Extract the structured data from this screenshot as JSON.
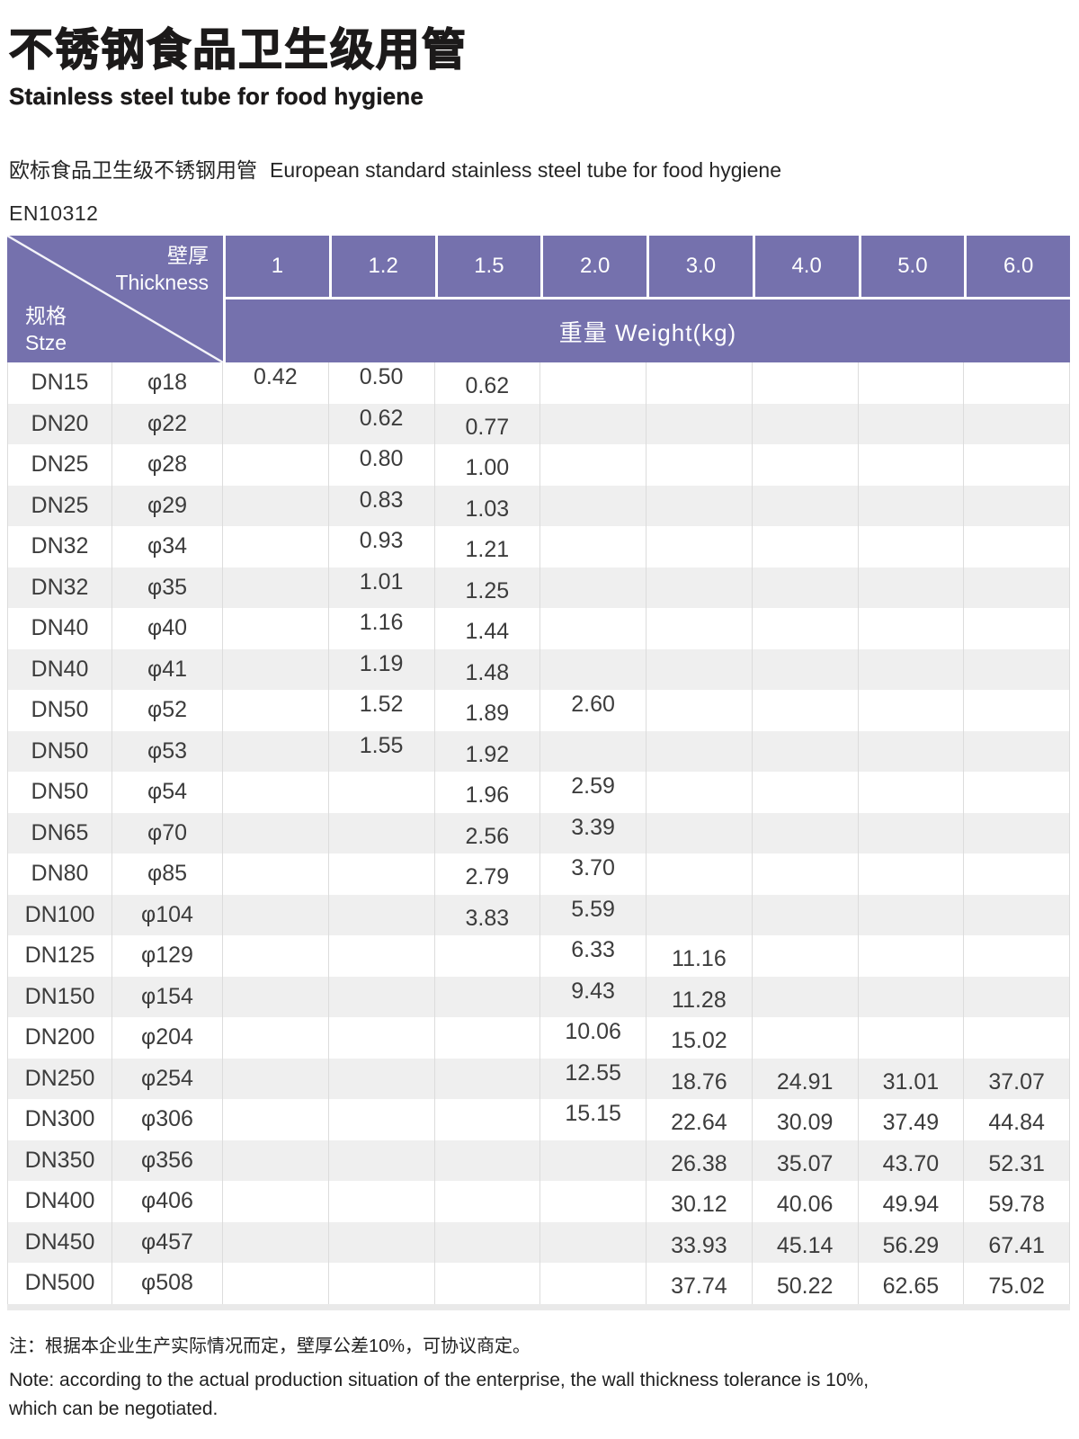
{
  "page": {
    "title_zh": "不锈钢食品卫生级用管",
    "title_en": "Stainless steel tube for food hygiene",
    "subtitle_zh": "欧标食品卫生级不锈钢用管",
    "subtitle_en": "European standard stainless steel tube for food hygiene",
    "standard": "EN10312"
  },
  "colors": {
    "header_purple": "#7571ad",
    "stripe_gray": "#efefef",
    "divider_gray": "#dcdcdc"
  },
  "table": {
    "corner": {
      "top_zh": "壁厚",
      "top_en": "Thickness",
      "bottom_zh": "规格",
      "bottom_en": "Stze"
    },
    "thickness_columns": [
      "1",
      "1.2",
      "1.5",
      "2.0",
      "3.0",
      "4.0",
      "5.0",
      "6.0"
    ],
    "weight_header": "重量 Weight(kg)",
    "column_offset_styles": [
      "up",
      "up",
      "down",
      "up",
      "down",
      "down",
      "down",
      "down"
    ],
    "rows": [
      {
        "dn": "DN15",
        "dia": "φ18",
        "weights": [
          "0.42",
          "0.50",
          "0.62",
          "",
          "",
          "",
          "",
          ""
        ]
      },
      {
        "dn": "DN20",
        "dia": "φ22",
        "weights": [
          "",
          "0.62",
          "0.77",
          "",
          "",
          "",
          "",
          ""
        ]
      },
      {
        "dn": "DN25",
        "dia": "φ28",
        "weights": [
          "",
          "0.80",
          "1.00",
          "",
          "",
          "",
          "",
          ""
        ]
      },
      {
        "dn": "DN25",
        "dia": "φ29",
        "weights": [
          "",
          "0.83",
          "1.03",
          "",
          "",
          "",
          "",
          ""
        ]
      },
      {
        "dn": "DN32",
        "dia": "φ34",
        "weights": [
          "",
          "0.93",
          "1.21",
          "",
          "",
          "",
          "",
          ""
        ]
      },
      {
        "dn": "DN32",
        "dia": "φ35",
        "weights": [
          "",
          "1.01",
          "1.25",
          "",
          "",
          "",
          "",
          ""
        ]
      },
      {
        "dn": "DN40",
        "dia": "φ40",
        "weights": [
          "",
          "1.16",
          "1.44",
          "",
          "",
          "",
          "",
          ""
        ]
      },
      {
        "dn": "DN40",
        "dia": "φ41",
        "weights": [
          "",
          "1.19",
          "1.48",
          "",
          "",
          "",
          "",
          ""
        ]
      },
      {
        "dn": "DN50",
        "dia": "φ52",
        "weights": [
          "",
          "1.52",
          "1.89",
          "2.60",
          "",
          "",
          "",
          ""
        ]
      },
      {
        "dn": "DN50",
        "dia": "φ53",
        "weights": [
          "",
          "1.55",
          "1.92",
          "",
          "",
          "",
          "",
          ""
        ]
      },
      {
        "dn": "DN50",
        "dia": "φ54",
        "weights": [
          "",
          "",
          "1.96",
          "2.59",
          "",
          "",
          "",
          ""
        ]
      },
      {
        "dn": "DN65",
        "dia": "φ70",
        "weights": [
          "",
          "",
          "2.56",
          "3.39",
          "",
          "",
          "",
          ""
        ]
      },
      {
        "dn": "DN80",
        "dia": "φ85",
        "weights": [
          "",
          "",
          "2.79",
          "3.70",
          "",
          "",
          "",
          ""
        ]
      },
      {
        "dn": "DN100",
        "dia": "φ104",
        "weights": [
          "",
          "",
          "3.83",
          "5.59",
          "",
          "",
          "",
          ""
        ]
      },
      {
        "dn": "DN125",
        "dia": "φ129",
        "weights": [
          "",
          "",
          "",
          "6.33",
          "11.16",
          "",
          "",
          ""
        ]
      },
      {
        "dn": "DN150",
        "dia": "φ154",
        "weights": [
          "",
          "",
          "",
          "9.43",
          "11.28",
          "",
          "",
          ""
        ]
      },
      {
        "dn": "DN200",
        "dia": "φ204",
        "weights": [
          "",
          "",
          "",
          "10.06",
          "15.02",
          "",
          "",
          ""
        ]
      },
      {
        "dn": "DN250",
        "dia": "φ254",
        "weights": [
          "",
          "",
          "",
          "12.55",
          "18.76",
          "24.91",
          "31.01",
          "37.07"
        ]
      },
      {
        "dn": "DN300",
        "dia": "φ306",
        "weights": [
          "",
          "",
          "",
          "15.15",
          "22.64",
          "30.09",
          "37.49",
          "44.84"
        ]
      },
      {
        "dn": "DN350",
        "dia": "φ356",
        "weights": [
          "",
          "",
          "",
          "",
          "26.38",
          "35.07",
          "43.70",
          "52.31"
        ]
      },
      {
        "dn": "DN400",
        "dia": "φ406",
        "weights": [
          "",
          "",
          "",
          "",
          "30.12",
          "40.06",
          "49.94",
          "59.78"
        ]
      },
      {
        "dn": "DN450",
        "dia": "φ457",
        "weights": [
          "",
          "",
          "",
          "",
          "33.93",
          "45.14",
          "56.29",
          "67.41"
        ]
      },
      {
        "dn": "DN500",
        "dia": "φ508",
        "weights": [
          "",
          "",
          "",
          "",
          "37.74",
          "50.22",
          "62.65",
          "75.02"
        ]
      }
    ]
  },
  "notes": {
    "zh": "注：根据本企业生产实际情况而定，壁厚公差10%，可协议商定。",
    "en_line1": "Note: according to the actual production situation of the enterprise, the wall thickness tolerance is 10%,",
    "en_line2": "which can be negotiated."
  }
}
